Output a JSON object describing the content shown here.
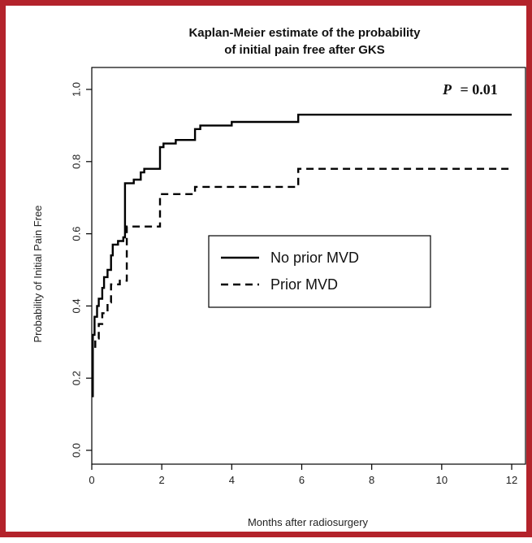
{
  "chart_data": {
    "type": "line",
    "title_lines": [
      "Kaplan-Meier estimate of the probability",
      "of initial pain free after GKS"
    ],
    "xlabel": "Months after radiosurgery",
    "ylabel": "Probability of Initial Pain Free",
    "xlim": [
      0,
      12
    ],
    "ylim": [
      0,
      1.0
    ],
    "x_ticks": [
      "0",
      "2",
      "4",
      "6",
      "8",
      "10",
      "12"
    ],
    "y_ticks": [
      "0.0",
      "0.2",
      "0.4",
      "0.6",
      "0.8",
      "1.0"
    ],
    "grid": false,
    "legend_position": "center",
    "annotation": {
      "label": "P",
      "value": "= 0.01"
    },
    "series": [
      {
        "name": "No prior MVD",
        "style": "solid",
        "color": "#000000",
        "x": [
          0,
          0.03,
          0.08,
          0.15,
          0.2,
          0.3,
          0.35,
          0.45,
          0.55,
          0.6,
          0.75,
          0.9,
          0.95,
          1.2,
          1.4,
          1.5,
          1.8,
          1.95,
          2.05,
          2.4,
          2.95,
          3.1,
          4.0,
          5.9,
          12.0
        ],
        "y": [
          0.15,
          0.32,
          0.37,
          0.4,
          0.42,
          0.45,
          0.48,
          0.5,
          0.54,
          0.57,
          0.58,
          0.59,
          0.74,
          0.75,
          0.77,
          0.78,
          0.78,
          0.84,
          0.85,
          0.86,
          0.89,
          0.9,
          0.91,
          0.93,
          0.93
        ]
      },
      {
        "name": "Prior MVD",
        "style": "dashed",
        "color": "#000000",
        "x": [
          0,
          0.03,
          0.1,
          0.2,
          0.3,
          0.45,
          0.55,
          0.8,
          0.95,
          1.0,
          1.9,
          1.95,
          2.8,
          2.95,
          5.9,
          12.0
        ],
        "y": [
          0.26,
          0.28,
          0.31,
          0.35,
          0.38,
          0.41,
          0.46,
          0.47,
          0.47,
          0.62,
          0.62,
          0.71,
          0.71,
          0.73,
          0.78,
          0.78
        ]
      }
    ]
  }
}
